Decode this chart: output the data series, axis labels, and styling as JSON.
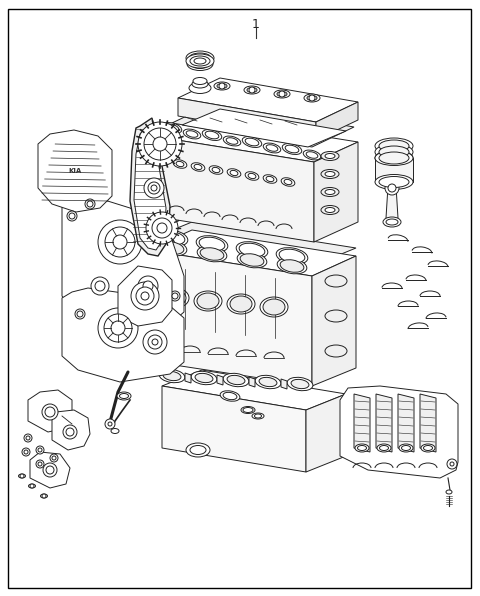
{
  "bg_color": "#ffffff",
  "border_color": "#000000",
  "line_color": "#222222",
  "fig_width": 4.8,
  "fig_height": 5.96,
  "dpi": 100,
  "label": "1"
}
